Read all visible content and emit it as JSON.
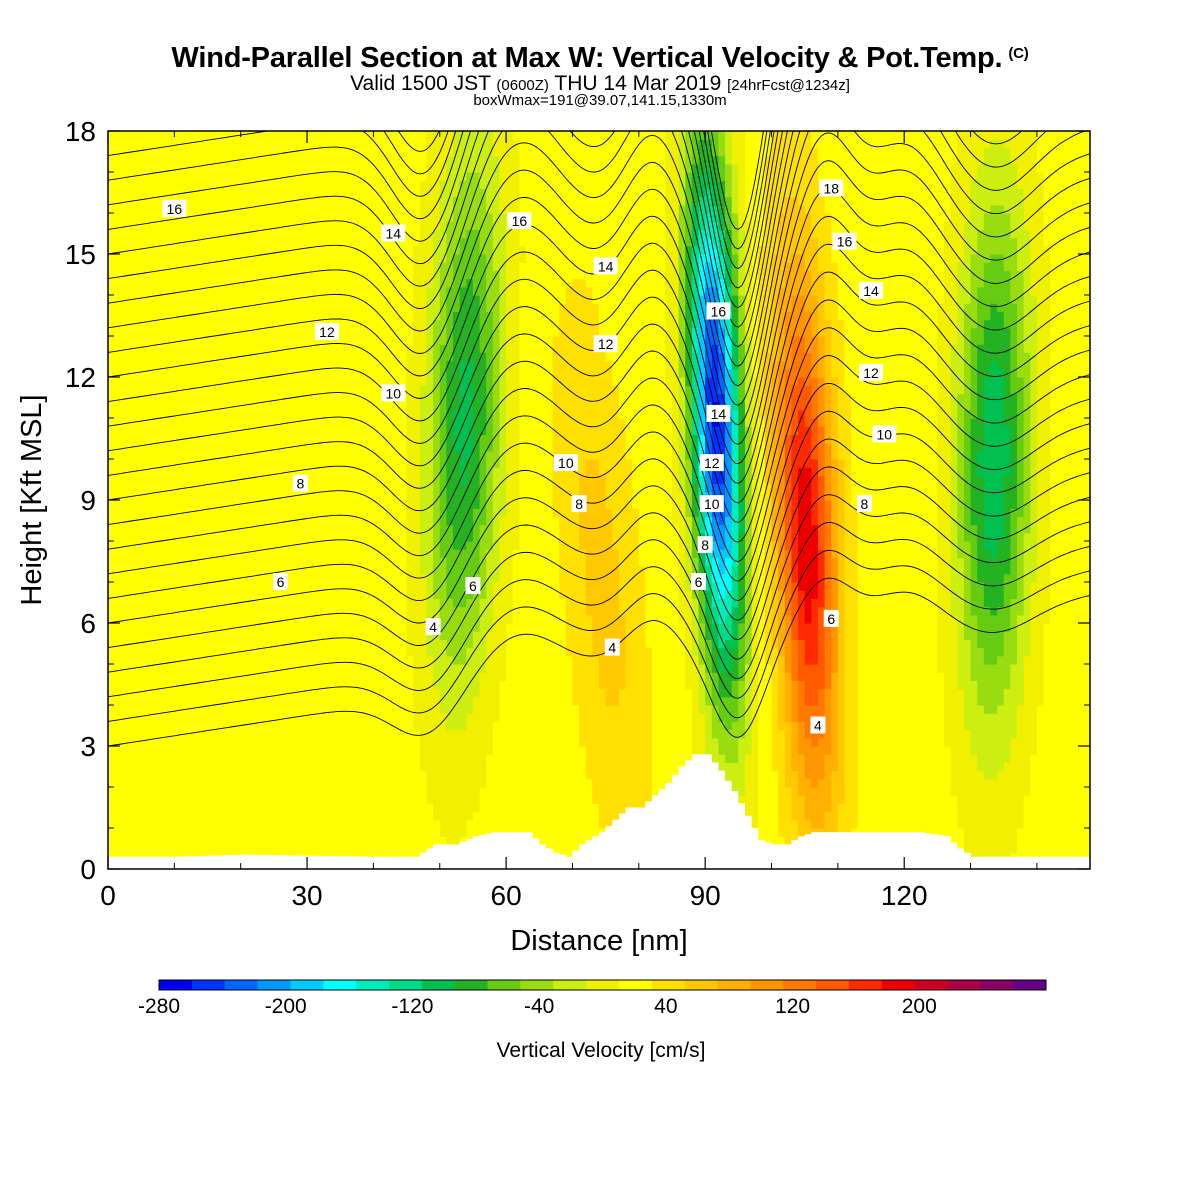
{
  "header": {
    "title": "Wind-Parallel Section at Max W: Vertical Velocity & Pot.Temp.",
    "copyright": "(C)",
    "valid_a": "Valid 1500 JST",
    "valid_utc": "(0600Z)",
    "valid_b": "THU 14 Mar 2019",
    "forecast": "[24hrFcst@1234z]",
    "boxmax": "boxWmax=191@39.07,141.15,1330m"
  },
  "chart_data": {
    "type": "heatmap",
    "xlabel": "Distance [nm]",
    "ylabel": "Height [Kft MSL]",
    "xlim": [
      0,
      148
    ],
    "ylim": [
      0,
      18
    ],
    "xticks": [
      0,
      30,
      60,
      90,
      120
    ],
    "yticks": [
      0,
      3,
      6,
      9,
      12,
      15,
      18
    ],
    "colorbar": {
      "label": "Vertical Velocity [cm/s]",
      "range": [
        -280,
        280
      ],
      "ticks": [
        -280,
        -200,
        -120,
        -40,
        40,
        120,
        200
      ],
      "colors": [
        "#0000ee",
        "#0033ff",
        "#0066ff",
        "#0099ff",
        "#00ccff",
        "#00ffff",
        "#00eebb",
        "#00dd88",
        "#00c050",
        "#22b222",
        "#66cc11",
        "#99dd11",
        "#ccee11",
        "#f0f000",
        "#ffff00",
        "#ffe000",
        "#ffc800",
        "#ffb000",
        "#ff9600",
        "#ff7800",
        "#ff5a00",
        "#ff2a00",
        "#ee0000",
        "#cc0022",
        "#aa0044",
        "#880066",
        "#660088"
      ]
    },
    "w_field": {
      "units": "cm/s",
      "background": 20,
      "features": [
        {
          "kind": "updraft",
          "x_top": 103,
          "x_bottom": 107,
          "height_range": [
            0.5,
            18
          ],
          "peak": 191,
          "peak_height": 8
        },
        {
          "kind": "downdraft",
          "x_top": 90,
          "x_bottom": 94,
          "height_range": [
            1,
            18
          ],
          "peak": -260,
          "peak_height": 11
        },
        {
          "kind": "downdraft",
          "x_top": 55,
          "x_bottom": 52,
          "height_range": [
            1,
            18
          ],
          "peak": -100,
          "peak_height": 11
        },
        {
          "kind": "downdraft",
          "x_top": 134,
          "x_bottom": 133,
          "height_range": [
            1,
            18
          ],
          "peak": -110,
          "peak_height": 10
        },
        {
          "kind": "updraft",
          "x_top": 71,
          "x_bottom": 78,
          "height_range": [
            1,
            13
          ],
          "peak": 60,
          "peak_height": 7
        }
      ]
    },
    "theta_contour_labels": [
      {
        "label": "16",
        "x": 10,
        "y": 16.1
      },
      {
        "label": "14",
        "x": 43,
        "y": 15.5
      },
      {
        "label": "12",
        "x": 33,
        "y": 13.1
      },
      {
        "label": "10",
        "x": 43,
        "y": 11.6
      },
      {
        "label": "8",
        "x": 29,
        "y": 9.4
      },
      {
        "label": "6",
        "x": 26,
        "y": 7.0
      },
      {
        "label": "4",
        "x": 49,
        "y": 5.9
      },
      {
        "label": "6",
        "x": 55,
        "y": 6.9
      },
      {
        "label": "16",
        "x": 62,
        "y": 15.8
      },
      {
        "label": "14",
        "x": 75,
        "y": 14.7
      },
      {
        "label": "12",
        "x": 75,
        "y": 12.8
      },
      {
        "label": "10",
        "x": 69,
        "y": 9.9
      },
      {
        "label": "8",
        "x": 71,
        "y": 8.9
      },
      {
        "label": "4",
        "x": 76,
        "y": 5.4
      },
      {
        "label": "16",
        "x": 92,
        "y": 13.6
      },
      {
        "label": "14",
        "x": 92,
        "y": 11.1
      },
      {
        "label": "12",
        "x": 91,
        "y": 9.9
      },
      {
        "label": "10",
        "x": 91,
        "y": 8.9
      },
      {
        "label": "8",
        "x": 90,
        "y": 7.9
      },
      {
        "label": "6",
        "x": 89,
        "y": 7.0
      },
      {
        "label": "18",
        "x": 109,
        "y": 16.6
      },
      {
        "label": "16",
        "x": 111,
        "y": 15.3
      },
      {
        "label": "14",
        "x": 115,
        "y": 14.1
      },
      {
        "label": "12",
        "x": 115,
        "y": 12.1
      },
      {
        "label": "10",
        "x": 117,
        "y": 10.6
      },
      {
        "label": "8",
        "x": 114,
        "y": 8.9
      },
      {
        "label": "6",
        "x": 109,
        "y": 6.1
      },
      {
        "label": "4",
        "x": 107,
        "y": 3.5
      }
    ],
    "terrain": {
      "x": [
        0,
        10,
        20,
        40,
        46,
        49,
        52,
        55,
        58,
        61,
        63,
        65,
        67,
        69,
        71,
        74,
        76,
        78,
        80,
        82,
        84,
        86,
        88,
        90,
        92,
        94,
        96,
        98,
        100,
        102,
        104,
        106,
        110,
        114,
        118,
        122,
        126,
        128,
        130,
        148
      ],
      "height": [
        0.3,
        0.3,
        0.35,
        0.3,
        0.3,
        0.6,
        0.6,
        0.8,
        0.9,
        0.9,
        0.9,
        0.6,
        0.4,
        0.3,
        0.6,
        0.9,
        1.2,
        1.5,
        1.5,
        1.8,
        2.1,
        2.5,
        2.8,
        2.8,
        2.4,
        1.9,
        1.3,
        0.7,
        0.6,
        0.6,
        0.8,
        0.9,
        0.9,
        0.9,
        0.9,
        0.9,
        0.8,
        0.5,
        0.3,
        0.3
      ]
    }
  }
}
